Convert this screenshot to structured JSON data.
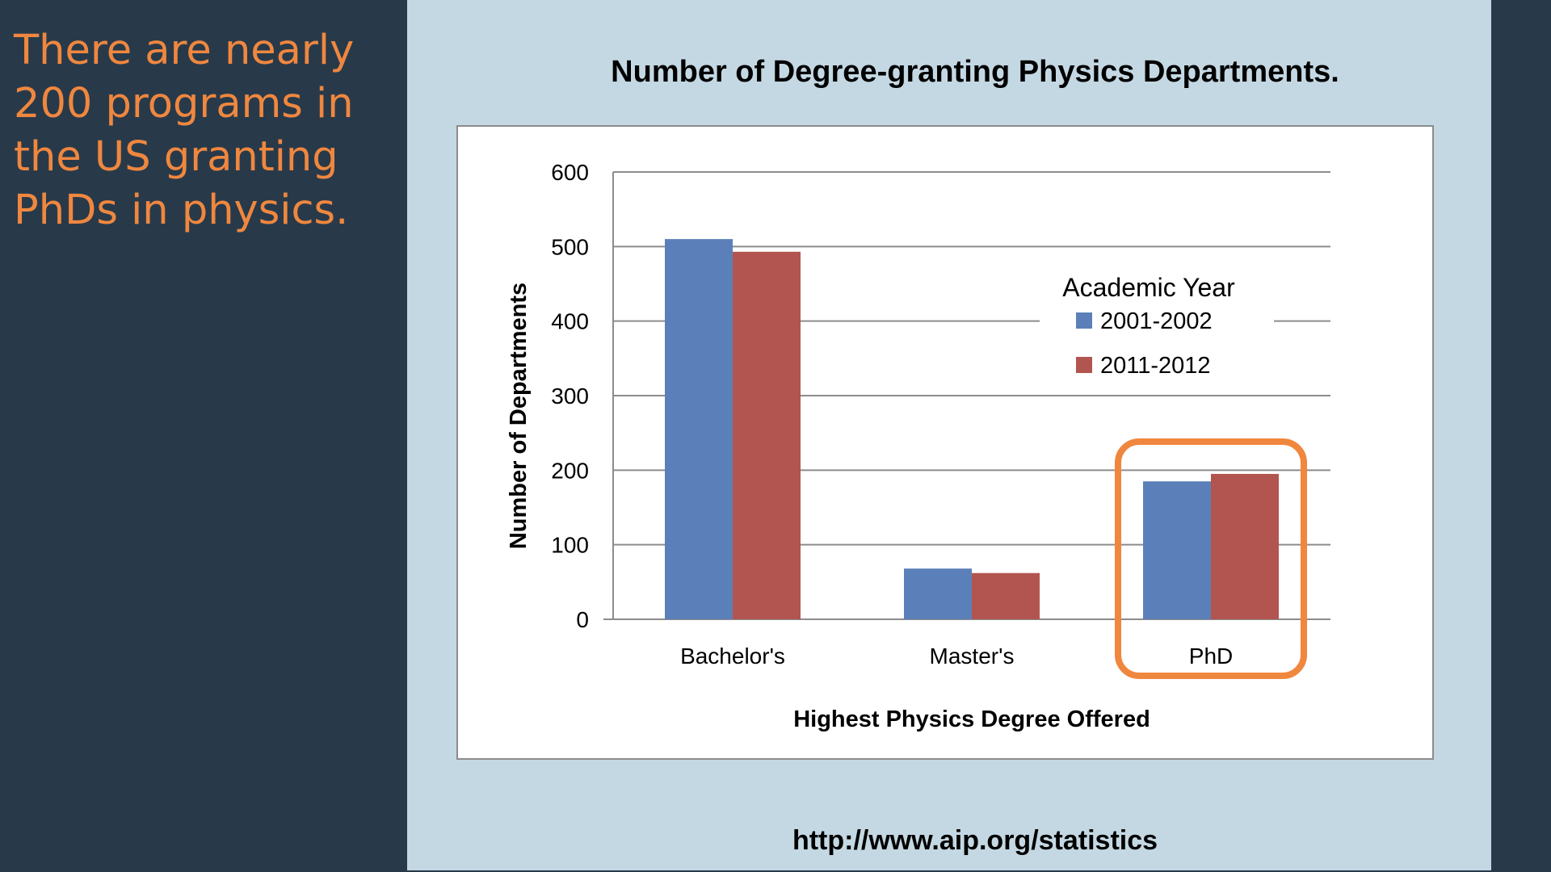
{
  "slide": {
    "side_text": "There are nearly 200 programs in the US granting PhDs in physics.",
    "title": "Number of Degree-granting Physics Departments.",
    "source": "http://www.aip.org/statistics"
  },
  "chart_data": {
    "type": "bar",
    "categories": [
      "Bachelor's",
      "Master's",
      "PhD"
    ],
    "series": [
      {
        "name": "2001-2002",
        "values": [
          510,
          68,
          185
        ],
        "color": "#5b80b9"
      },
      {
        "name": "2011-2012",
        "values": [
          493,
          62,
          195
        ],
        "color": "#b25550"
      }
    ],
    "xlabel": "Highest Physics Degree Offered",
    "ylabel": "Number of Departments",
    "ylim": [
      0,
      600
    ],
    "yticks": [
      0,
      100,
      200,
      300,
      400,
      500,
      600
    ],
    "grid": true,
    "legend": {
      "title": "Academic Year",
      "placement": "top-right"
    },
    "highlight": {
      "category": "PhD",
      "color": "#f0873f"
    }
  }
}
